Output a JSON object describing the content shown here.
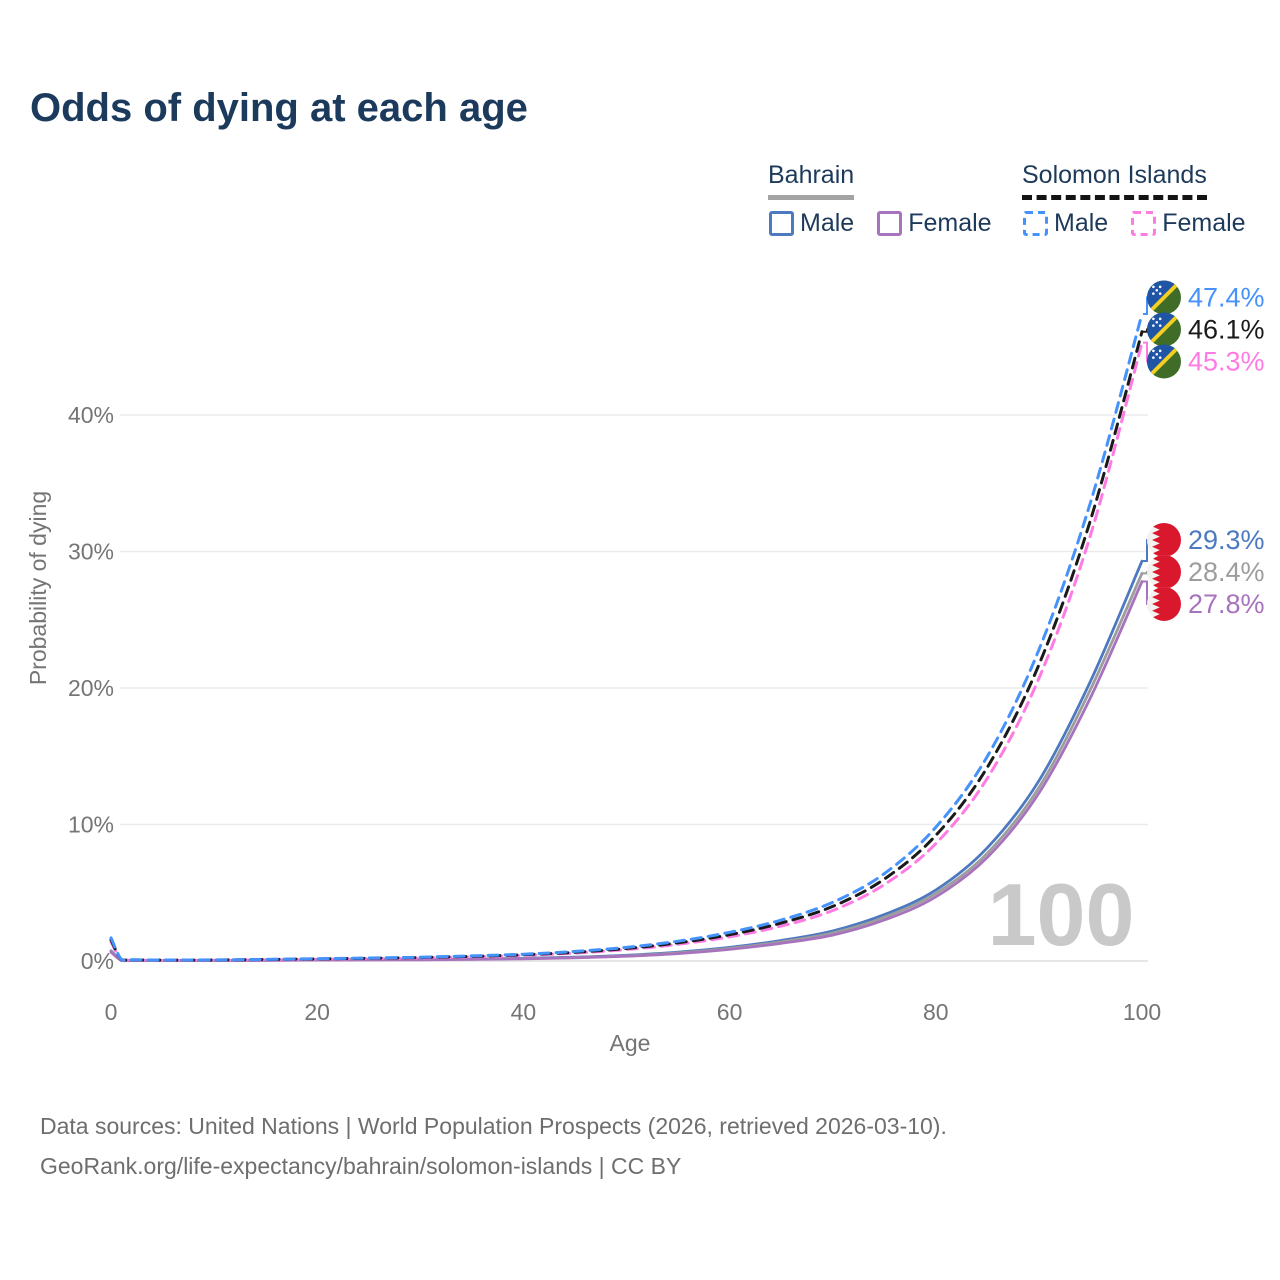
{
  "title": "Odds of dying at each age",
  "legend": {
    "groups": [
      {
        "name": "Bahrain",
        "line_style": "solid",
        "underline_color": "#a3a3a3",
        "items": [
          {
            "label": "Male",
            "color": "#4d79c0"
          },
          {
            "label": "Female",
            "color": "#a873bd"
          }
        ]
      },
      {
        "name": "Solomon Islands",
        "line_style": "dashed",
        "underline_color": "#141414",
        "items": [
          {
            "label": "Male",
            "color": "#4592fb"
          },
          {
            "label": "Female",
            "color": "#ff7be4"
          }
        ]
      }
    ]
  },
  "chart_data": {
    "type": "line",
    "title": "Odds of dying at each age",
    "xlabel": "Age",
    "ylabel": "Probability of dying",
    "x_ticks": [
      0,
      20,
      40,
      60,
      80,
      100
    ],
    "y_tick_values": [
      0,
      10,
      20,
      30,
      40
    ],
    "y_tick_labels": [
      "0%",
      "10%",
      "20%",
      "30%",
      "40%"
    ],
    "xlim": [
      0,
      100
    ],
    "ylim": [
      0,
      48.5
    ],
    "grid": "horizontal",
    "watermark": "100",
    "ages": [
      0,
      1,
      2,
      5,
      10,
      15,
      20,
      25,
      30,
      35,
      40,
      45,
      50,
      55,
      60,
      65,
      70,
      75,
      80,
      85,
      90,
      95,
      100
    ],
    "series": [
      {
        "id": "bahrain-male",
        "country": "Bahrain",
        "sex": "Male",
        "flag": "bahrain",
        "color": "#4d79c0",
        "dashed": false,
        "end_value": 29.3,
        "end_label": "29.3%",
        "values": [
          0.75,
          0.05,
          0.04,
          0.03,
          0.04,
          0.06,
          0.09,
          0.1,
          0.12,
          0.15,
          0.2,
          0.28,
          0.42,
          0.65,
          1.0,
          1.5,
          2.2,
          3.4,
          5.2,
          8.3,
          13.2,
          20.5,
          29.3
        ]
      },
      {
        "id": "bahrain-combined",
        "country": "Bahrain",
        "sex": "Combined",
        "flag": "bahrain",
        "color": "#9d9d9d",
        "dashed": false,
        "end_value": 28.4,
        "end_label": "28.4%",
        "values": [
          0.7,
          0.045,
          0.037,
          0.028,
          0.036,
          0.05,
          0.08,
          0.09,
          0.11,
          0.13,
          0.18,
          0.25,
          0.38,
          0.59,
          0.92,
          1.4,
          2.05,
          3.2,
          4.95,
          7.9,
          12.7,
          19.9,
          28.4
        ]
      },
      {
        "id": "bahrain-female",
        "country": "Bahrain",
        "sex": "Female",
        "flag": "bahrain",
        "color": "#a873bd",
        "dashed": false,
        "end_value": 27.8,
        "end_label": "27.8%",
        "values": [
          0.65,
          0.04,
          0.034,
          0.026,
          0.033,
          0.045,
          0.07,
          0.08,
          0.09,
          0.12,
          0.16,
          0.23,
          0.35,
          0.54,
          0.85,
          1.3,
          1.9,
          3.0,
          4.7,
          7.6,
          12.3,
          19.3,
          27.8
        ]
      },
      {
        "id": "solomon-islands-female",
        "country": "Solomon Islands",
        "sex": "Female",
        "flag": "solomon-islands",
        "color": "#ff7be4",
        "dashed": true,
        "end_value": 45.3,
        "end_label": "45.3%",
        "values": [
          1.4,
          0.1,
          0.08,
          0.06,
          0.07,
          0.1,
          0.14,
          0.18,
          0.23,
          0.31,
          0.42,
          0.58,
          0.84,
          1.22,
          1.77,
          2.56,
          3.7,
          5.6,
          8.6,
          13.4,
          20.7,
          31.2,
          45.3
        ]
      },
      {
        "id": "solomon-islands-combined",
        "country": "Solomon Islands",
        "sex": "Combined",
        "flag": "solomon-islands",
        "color": "#1a1a1a",
        "dashed": true,
        "end_value": 46.1,
        "end_label": "46.1%",
        "values": [
          1.55,
          0.11,
          0.085,
          0.065,
          0.075,
          0.11,
          0.155,
          0.2,
          0.26,
          0.34,
          0.46,
          0.64,
          0.92,
          1.33,
          1.93,
          2.78,
          4.0,
          6.0,
          9.2,
          14.2,
          21.7,
          32.3,
          46.1
        ]
      },
      {
        "id": "solomon-islands-male",
        "country": "Solomon Islands",
        "sex": "Male",
        "flag": "solomon-islands",
        "color": "#4592fb",
        "dashed": true,
        "end_value": 47.4,
        "end_label": "47.4%",
        "values": [
          1.7,
          0.12,
          0.09,
          0.07,
          0.08,
          0.12,
          0.17,
          0.22,
          0.28,
          0.37,
          0.5,
          0.7,
          1.0,
          1.45,
          2.1,
          3.0,
          4.3,
          6.4,
          9.8,
          15.0,
          22.8,
          33.6,
          47.4
        ]
      }
    ]
  },
  "footer": {
    "line1": "Data sources: United Nations | World Population Prospects (2026, retrieved 2026-03-10).",
    "line2": "GeoRank.org/life-expectancy/bahrain/solomon-islands | CC BY"
  }
}
